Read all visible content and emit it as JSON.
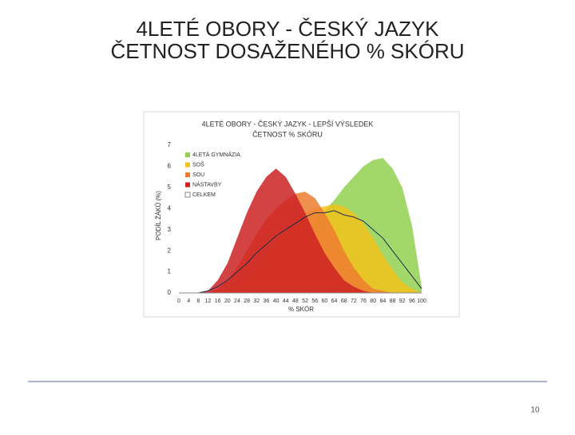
{
  "slide": {
    "title_lines": [
      "4LETÉ OBORY - ČESKÝ JAZYK",
      "ČETNOST DOSAŽENÉHO % SKÓRU"
    ],
    "page_number": "10"
  },
  "chart_data": {
    "type": "area",
    "title": [
      "4LETÉ OBORY - ČESKÝ JAZYK - LEPŠÍ VÝSLEDEK",
      "ČETNOST % SKÓRU"
    ],
    "x_label": "% SKÓR",
    "y_label": "PODÍL ŽÁKŮ (%)",
    "x": [
      0,
      4,
      8,
      12,
      16,
      20,
      24,
      28,
      32,
      36,
      40,
      44,
      48,
      52,
      56,
      60,
      64,
      68,
      72,
      76,
      80,
      84,
      88,
      92,
      96,
      100
    ],
    "xlim": [
      0,
      100
    ],
    "xticks": [
      0,
      4,
      8,
      12,
      16,
      20,
      24,
      28,
      32,
      36,
      40,
      44,
      48,
      52,
      56,
      60,
      64,
      68,
      72,
      76,
      80,
      84,
      88,
      92,
      96,
      100
    ],
    "ylim": [
      0,
      7
    ],
    "yticks": [
      0,
      1,
      2,
      3,
      4,
      5,
      6,
      7
    ],
    "legend": "upper left",
    "series": [
      {
        "name": "4LETÁ GYMNÁZIA",
        "type": "area",
        "color": "#92d050",
        "values": [
          0,
          0,
          0,
          0,
          0,
          0,
          0,
          0.1,
          0.3,
          0.6,
          1.0,
          1.5,
          2.1,
          2.7,
          3.3,
          3.9,
          4.4,
          5.0,
          5.5,
          6.0,
          6.3,
          6.4,
          5.9,
          5.0,
          3.2,
          0.3
        ]
      },
      {
        "name": "SOŠ",
        "type": "area",
        "color": "#f2c31a",
        "values": [
          0,
          0,
          0,
          0,
          0,
          0.1,
          0.3,
          0.7,
          1.2,
          1.8,
          2.4,
          3.0,
          3.5,
          3.8,
          4.0,
          4.1,
          4.2,
          4.1,
          3.8,
          3.3,
          2.6,
          1.8,
          1.1,
          0.5,
          0.2,
          0
        ]
      },
      {
        "name": "SOU",
        "type": "area",
        "color": "#ed7d31",
        "values": [
          0,
          0,
          0,
          0,
          0.2,
          0.6,
          1.2,
          2.0,
          2.8,
          3.5,
          4.0,
          4.4,
          4.7,
          4.8,
          4.5,
          3.8,
          3.0,
          2.0,
          1.2,
          0.6,
          0.2,
          0.1,
          0,
          0,
          0,
          0
        ]
      },
      {
        "name": "NÁSTAVBY",
        "type": "area",
        "color": "#cc2222",
        "values": [
          0,
          0,
          0,
          0.1,
          0.6,
          1.4,
          2.6,
          3.8,
          4.8,
          5.5,
          5.9,
          5.5,
          4.7,
          3.8,
          2.8,
          1.9,
          1.2,
          0.6,
          0.3,
          0.1,
          0,
          0,
          0,
          0,
          0,
          0
        ]
      },
      {
        "name": "CELKEM",
        "type": "line",
        "color": "#1f2d4e",
        "values": [
          0,
          0,
          0,
          0.1,
          0.3,
          0.6,
          1.0,
          1.4,
          1.9,
          2.3,
          2.7,
          3.0,
          3.3,
          3.6,
          3.8,
          3.8,
          3.9,
          3.7,
          3.6,
          3.4,
          3.0,
          2.6,
          2.0,
          1.4,
          0.8,
          0.2
        ]
      }
    ]
  }
}
